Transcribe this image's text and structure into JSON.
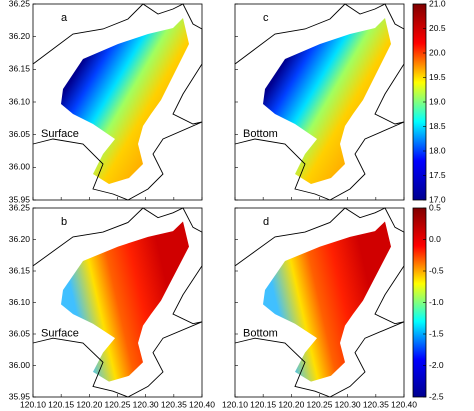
{
  "chart_data": {
    "type": "map",
    "xlim": [
      120.1,
      120.4
    ],
    "xticks": [
      {
        "value": 120.1,
        "label": "120.10"
      },
      120.15,
      {
        "value": 120.2,
        "label": "120.20"
      },
      120.25,
      {
        "value": 120.3,
        "label": "120.30"
      },
      120.35,
      {
        "value": 120.4,
        "label": "120.40"
      }
    ],
    "ylim": [
      35.95,
      36.25
    ],
    "yticks": [
      35.95,
      {
        "value": 36,
        "label": "36.00"
      },
      36.05,
      {
        "value": 36.1,
        "label": "36.10"
      },
      36.15,
      {
        "value": 36.2,
        "label": "36.20"
      },
      36.25
    ],
    "rows": [
      {
        "panels": [
          {
            "label": "a",
            "layer": "Surface"
          },
          {
            "label": "c",
            "layer": "Bottom"
          }
        ],
        "colorbar": {
          "lim": [
            17,
            21
          ],
          "colors": [
            "#00008f",
            "#0000ff",
            "#00ffff",
            "#ffff00",
            "#ff0000",
            "#800000"
          ],
          "ticks": [
            {
              "value": 17,
              "label": "17.0"
            },
            17.5,
            {
              "value": 18,
              "label": "18.0"
            },
            18.5,
            {
              "value": 19,
              "label": "19.0"
            },
            19.5,
            {
              "value": 20,
              "label": "20.0"
            },
            20.5,
            {
              "value": 21,
              "label": "21.0"
            }
          ]
        }
      },
      {
        "panels": [
          {
            "label": "b",
            "layer": "Surface"
          },
          {
            "label": "d",
            "layer": "Bottom"
          }
        ],
        "colorbar": {
          "lim": [
            -2.5,
            0.5
          ],
          "colors": [
            "#00008f",
            "#0000ff",
            "#00ffff",
            "#ffff00",
            "#ff0000",
            "#800000"
          ],
          "ticks": [
            -2.5,
            {
              "value": -2,
              "label": "-2.0"
            },
            -1.5,
            {
              "value": -1,
              "label": "-1.0"
            },
            -0.5,
            {
              "value": 0,
              "label": "0.0"
            },
            0.5
          ]
        }
      }
    ]
  }
}
